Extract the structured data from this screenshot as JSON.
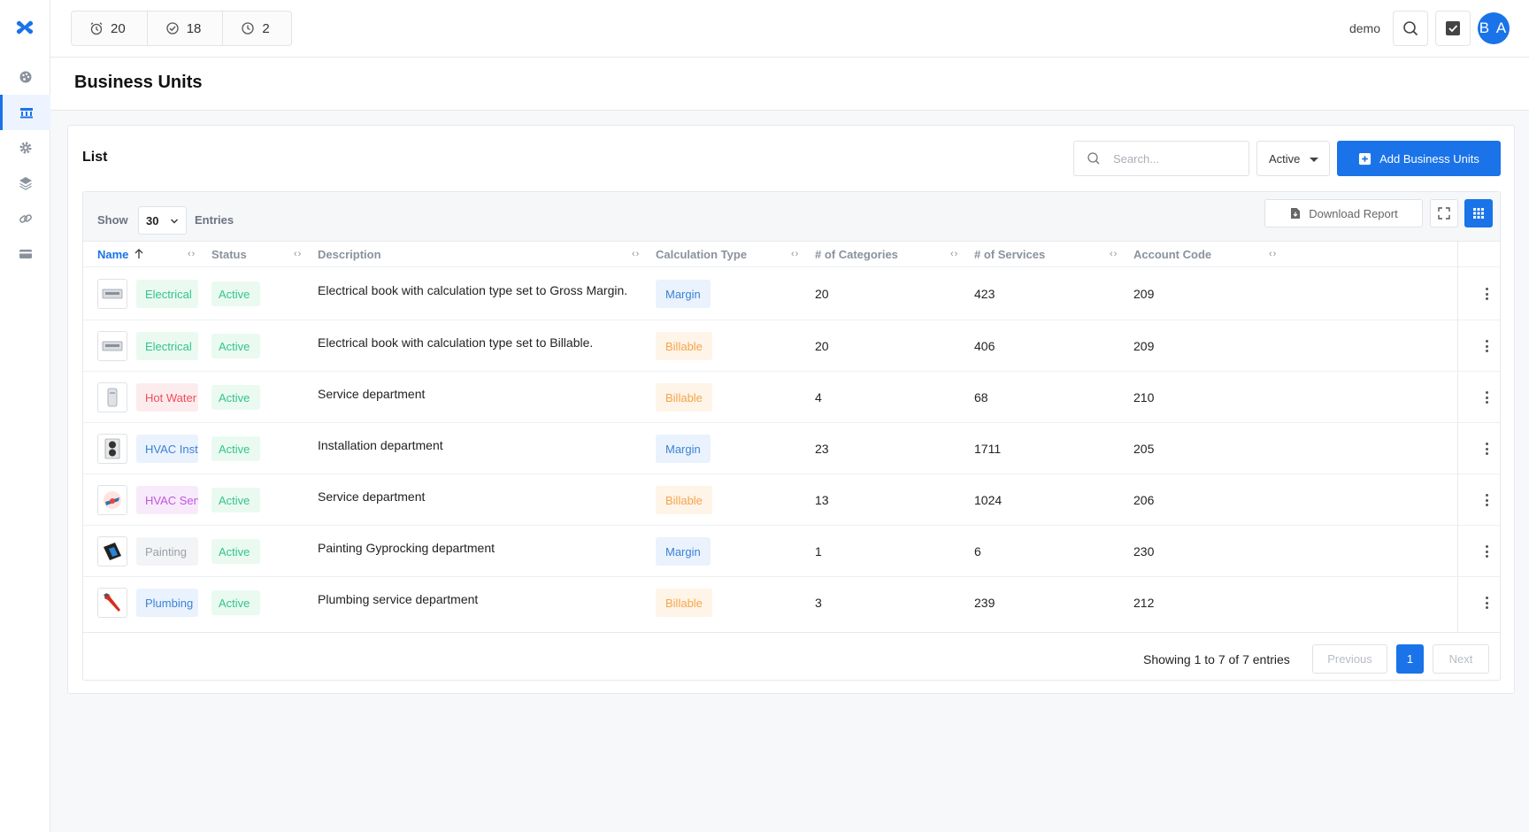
{
  "topbar": {
    "counters": [
      {
        "icon": "alarm-clock-icon",
        "value": "20"
      },
      {
        "icon": "check-circle-icon",
        "value": "18"
      },
      {
        "icon": "pending-clock-icon",
        "value": "2"
      }
    ],
    "username": "demo",
    "avatar_initials": "B A"
  },
  "sidebar": {
    "items": [
      {
        "name": "dashboard",
        "icon": "palette-icon"
      },
      {
        "name": "business-units",
        "icon": "bank-icon",
        "active": true
      },
      {
        "name": "settings",
        "icon": "gear-icon"
      },
      {
        "name": "layers",
        "icon": "layers-icon"
      },
      {
        "name": "integrations",
        "icon": "link-icon"
      },
      {
        "name": "billing",
        "icon": "credit-card-icon"
      }
    ]
  },
  "page": {
    "title": "Business Units"
  },
  "card": {
    "title": "List",
    "search_placeholder": "Search...",
    "status_filter": "Active",
    "add_button": "Add Business Units"
  },
  "table_controls": {
    "show_label": "Show",
    "entries_value": "30",
    "entries_label": "Entries",
    "download_label": "Download Report"
  },
  "columns": [
    "Name",
    "Status",
    "Description",
    "Calculation Type",
    "# of Categories",
    "# of Services",
    "Account Code"
  ],
  "rows": [
    {
      "thumb": "panel",
      "name": "Electrical",
      "name_color": "green",
      "status": "Active",
      "description": "Electrical book with calculation type set to Gross Margin.",
      "calc": "Margin",
      "categories": "20",
      "services": "423",
      "code": "209"
    },
    {
      "thumb": "panel",
      "name": "Electrical",
      "name_color": "green",
      "status": "Active",
      "description": "Electrical book with calculation type set to Billable.",
      "calc": "Billable",
      "categories": "20",
      "services": "406",
      "code": "209"
    },
    {
      "thumb": "tank",
      "name": "Hot Water",
      "name_color": "red",
      "status": "Active",
      "description": "Service department",
      "calc": "Billable",
      "categories": "4",
      "services": "68",
      "code": "210"
    },
    {
      "thumb": "hvac",
      "name": "HVAC Install",
      "name_color": "blue",
      "status": "Active",
      "description": "Installation department",
      "calc": "Margin",
      "categories": "23",
      "services": "1711",
      "code": "205"
    },
    {
      "thumb": "service",
      "name": "HVAC Service",
      "name_color": "purple",
      "status": "Active",
      "description": "Service department",
      "calc": "Billable",
      "categories": "13",
      "services": "1024",
      "code": "206"
    },
    {
      "thumb": "paint",
      "name": "Painting",
      "name_color": "gray",
      "status": "Active",
      "description": "Painting Gyprocking department",
      "calc": "Margin",
      "categories": "1",
      "services": "6",
      "code": "230"
    },
    {
      "thumb": "wrench",
      "name": "Plumbing",
      "name_color": "blue",
      "status": "Active",
      "description": "Plumbing service department",
      "calc": "Billable",
      "categories": "3",
      "services": "239",
      "code": "212"
    }
  ],
  "pagination": {
    "summary": "Showing 1 to 7 of 7 entries",
    "previous": "Previous",
    "current": "1",
    "next": "Next"
  },
  "colors": {
    "primary": "#1a73e8",
    "status_green": "#34c38f",
    "margin_blue": "#3b82d6",
    "billable_orange": "#f5a54a"
  }
}
